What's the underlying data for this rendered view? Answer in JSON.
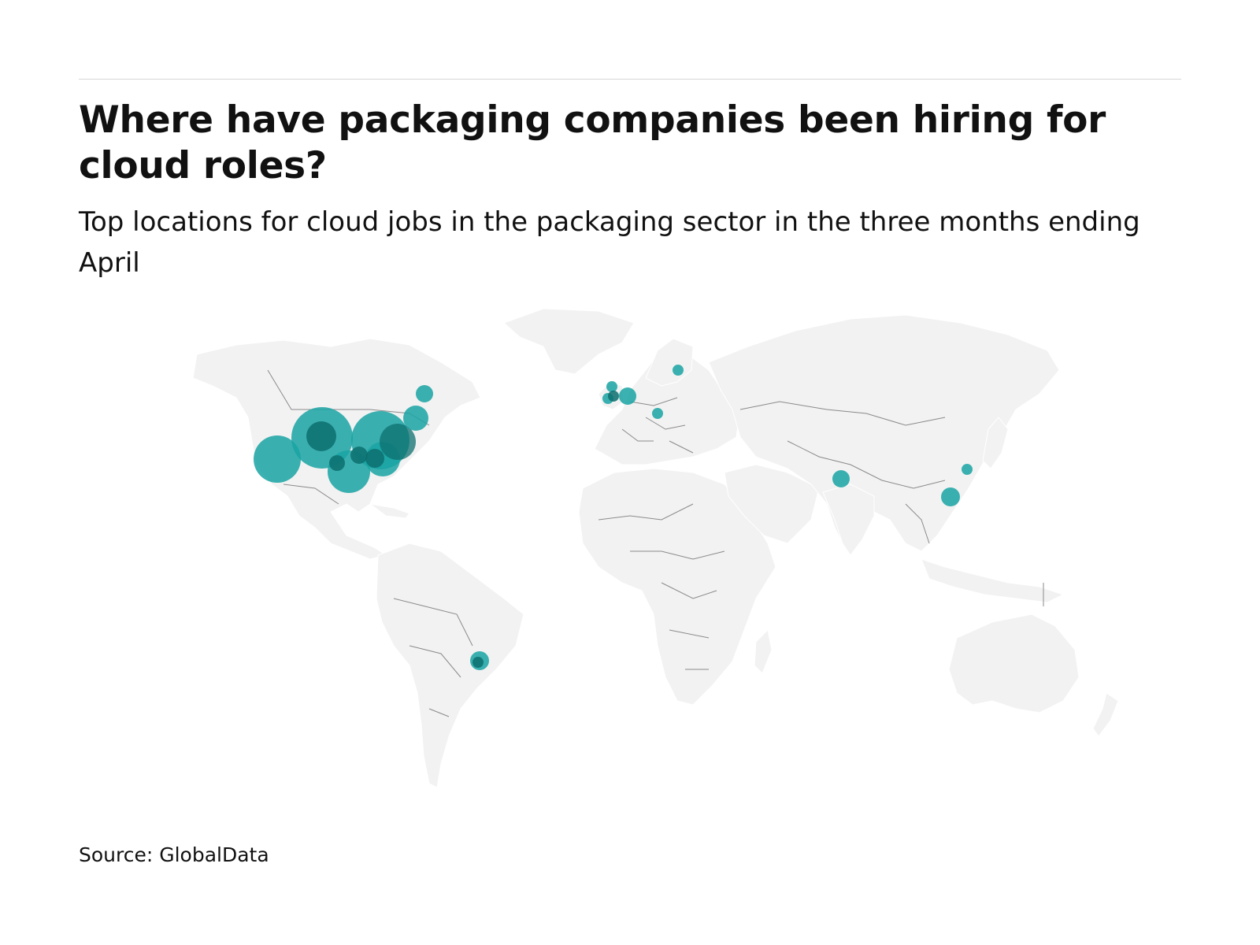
{
  "header": {
    "title": "Where have packaging companies been hiring for cloud roles?",
    "subtitle": "Top locations for cloud jobs in the packaging sector in the three months ending April"
  },
  "footer": {
    "source": "Source: GlobalData"
  },
  "map": {
    "basemap": "world",
    "land_color": "#f2f2f2",
    "border_color": "#8a8a8a",
    "bubble_color": "#1aa3a3"
  }
}
